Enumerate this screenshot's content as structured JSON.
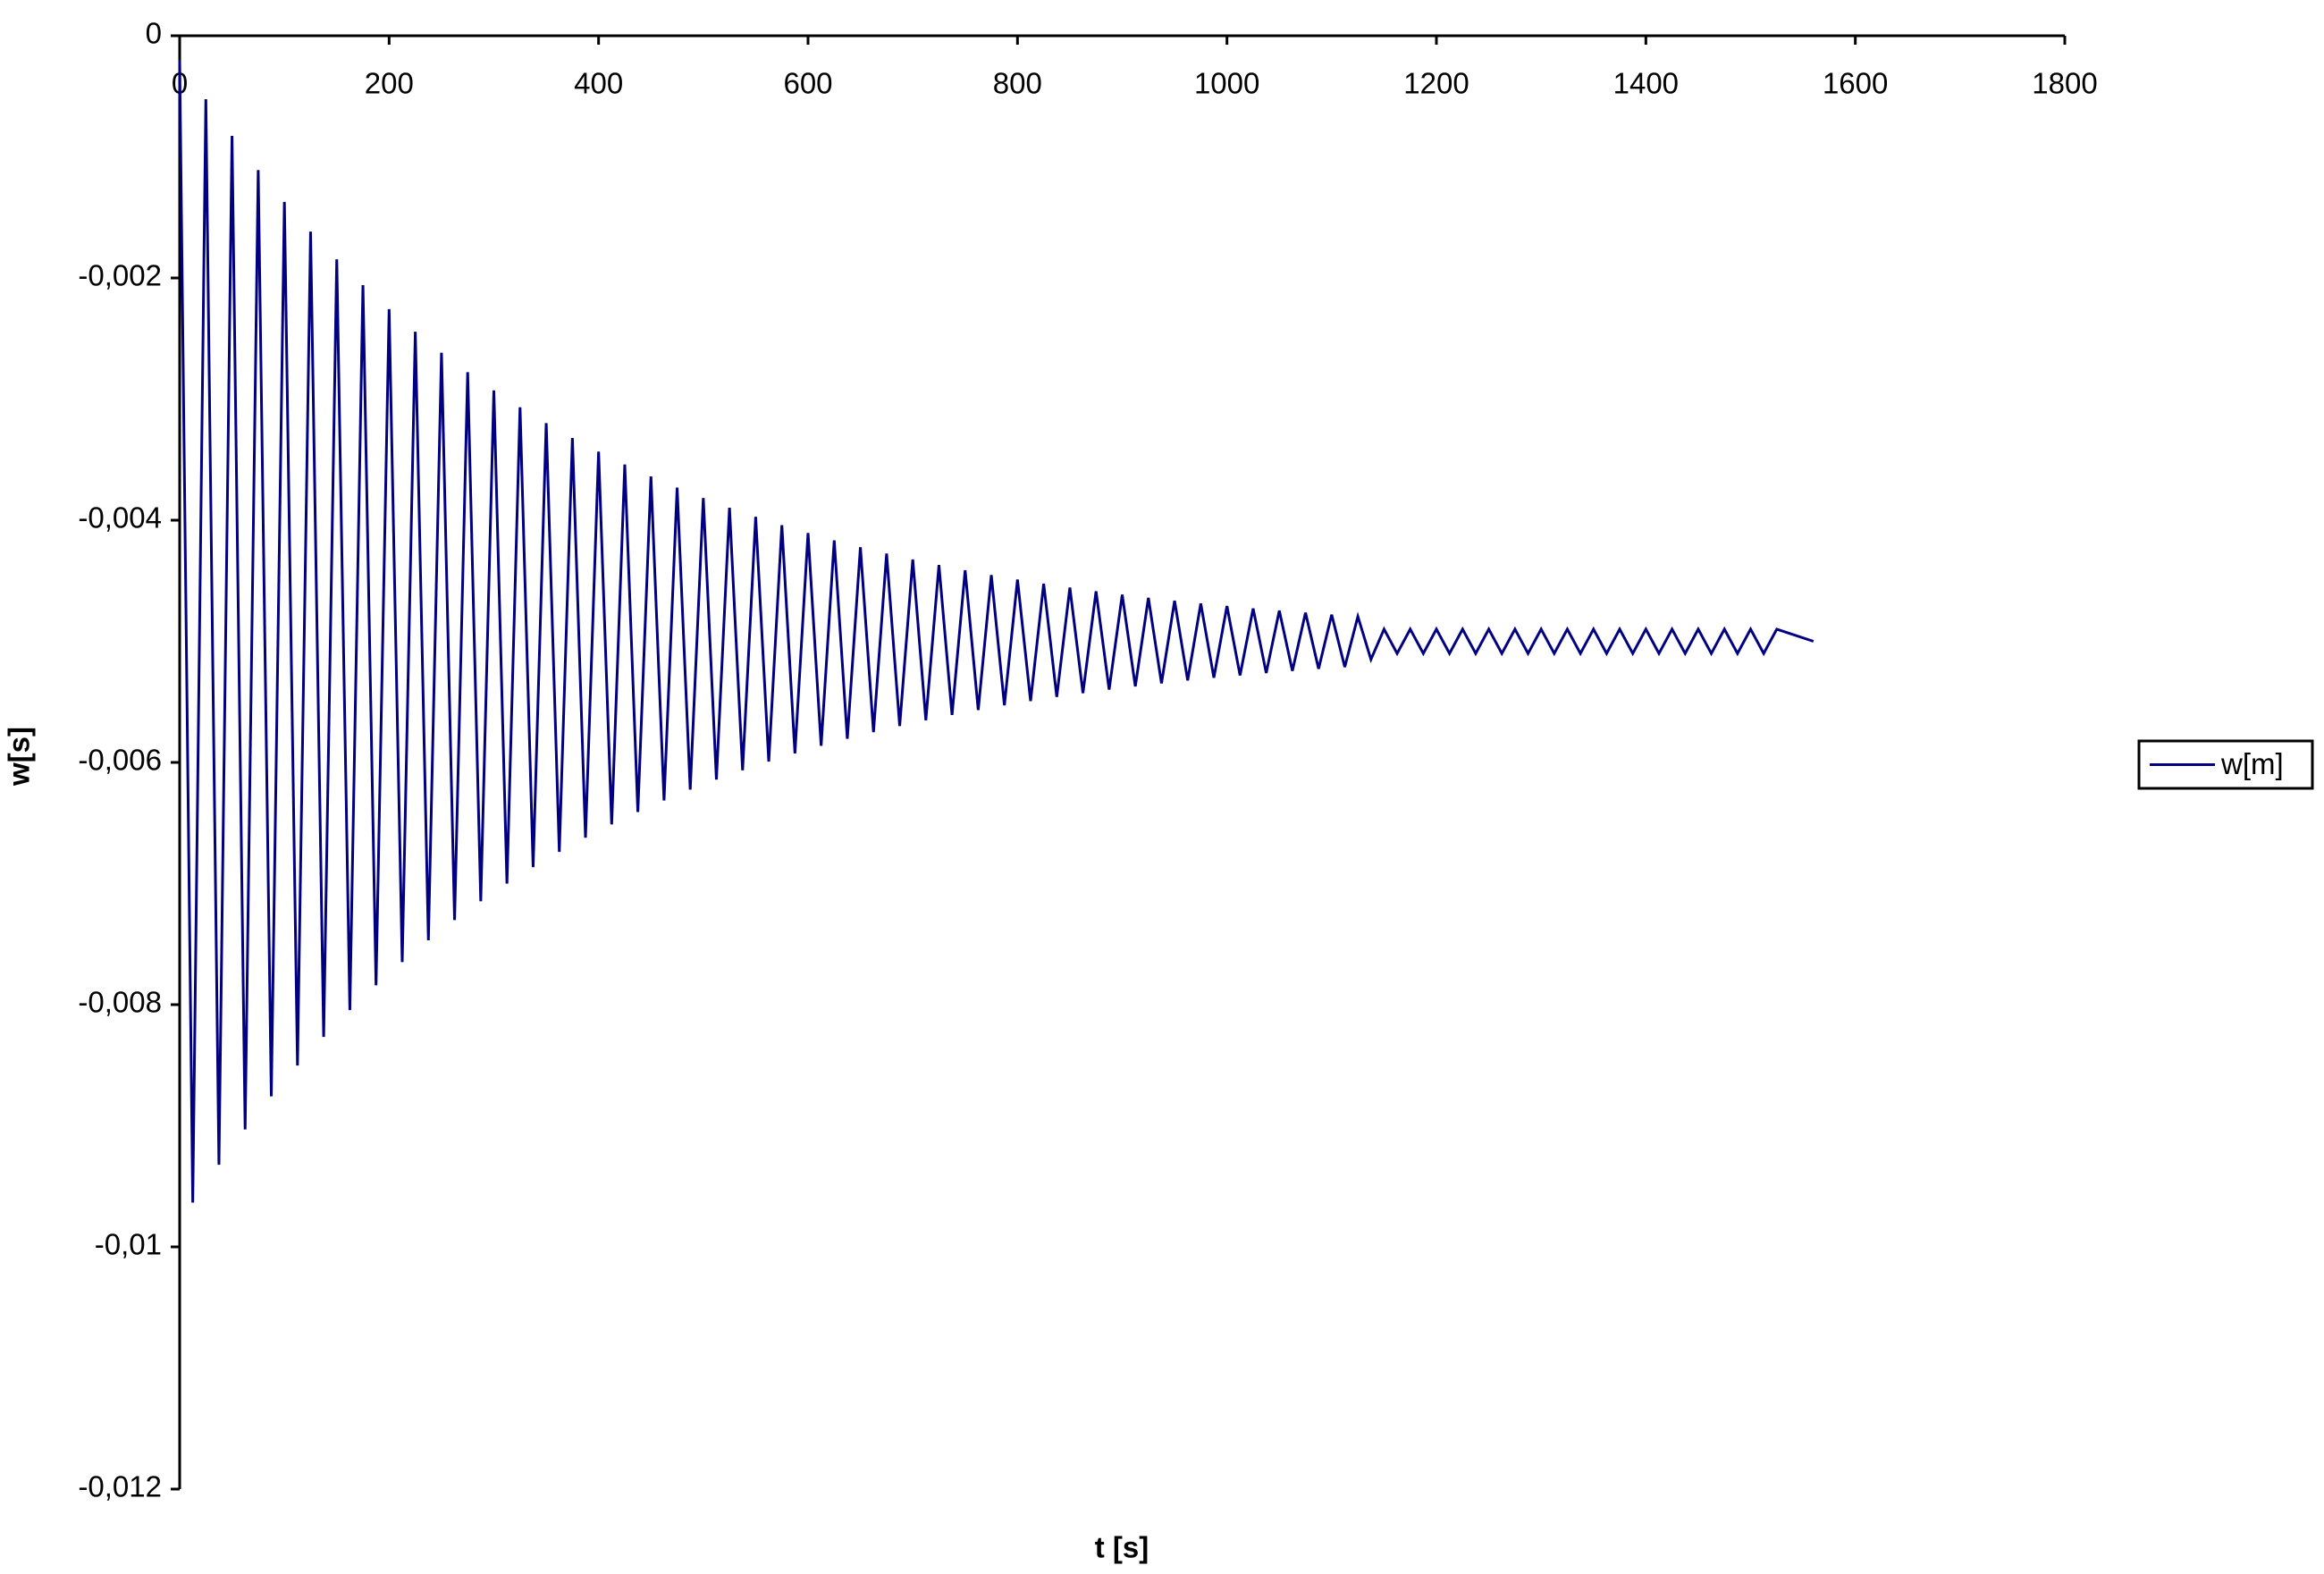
{
  "chart_data": {
    "type": "line",
    "xlabel": "t [s]",
    "ylabel": "w[s]",
    "x": [
      0,
      12.5,
      25,
      37.5,
      50,
      62.5,
      75,
      87.5,
      100,
      112.5,
      125,
      137.5,
      150,
      162.5,
      175,
      187.5,
      200,
      212.5,
      225,
      237.5,
      250,
      262.5,
      275,
      287.5,
      300,
      312.5,
      325,
      337.5,
      350,
      362.5,
      375,
      387.5,
      400,
      412.5,
      425,
      437.5,
      450,
      462.5,
      475,
      487.5,
      500,
      512.5,
      525,
      537.5,
      550,
      562.5,
      575,
      587.5,
      600,
      612.5,
      625,
      637.5,
      650,
      662.5,
      675,
      687.5,
      700,
      712.5,
      725,
      737.5,
      750,
      762.5,
      775,
      787.5,
      800,
      812.5,
      825,
      837.5,
      850,
      862.5,
      875,
      887.5,
      900,
      912.5,
      925,
      937.5,
      950,
      962.5,
      975,
      987.5,
      1000,
      1012.5,
      1025,
      1037.5,
      1050,
      1062.5,
      1075,
      1087.5,
      1100,
      1112.5,
      1125,
      1137.5,
      1150,
      1162.5,
      1175,
      1187.5,
      1200,
      1212.5,
      1225,
      1237.5,
      1250,
      1262.5,
      1275,
      1287.5,
      1300,
      1312.5,
      1325,
      1337.5,
      1350,
      1362.5,
      1375,
      1387.5,
      1400,
      1412.5,
      1425,
      1437.5,
      1450,
      1462.5,
      1475,
      1487.5,
      1500,
      1512.5,
      1525,
      1560
    ],
    "series": [
      {
        "name": "w[m]",
        "color": "#000080",
        "values": [
          -0.0002,
          -0.009635,
          -0.000524,
          -0.009322,
          -0.000827,
          -0.00903,
          -0.001109,
          -0.008757,
          -0.001372,
          -0.008503,
          -0.001617,
          -0.008266,
          -0.001846,
          -0.008045,
          -0.002059,
          -0.00784,
          -0.002258,
          -0.007648,
          -0.002444,
          -0.007468,
          -0.002617,
          -0.007301,
          -0.002778,
          -0.007146,
          -0.002928,
          -0.007001,
          -0.003068,
          -0.006865,
          -0.003199,
          -0.006739,
          -0.003321,
          -0.006621,
          -0.003434,
          -0.006512,
          -0.00354,
          -0.006409,
          -0.003639,
          -0.006314,
          -0.003731,
          -0.006225,
          -0.003817,
          -0.006142,
          -0.003897,
          -0.006065,
          -0.003972,
          -0.005993,
          -0.004041,
          -0.005926,
          -0.004106,
          -0.005863,
          -0.004167,
          -0.005805,
          -0.004223,
          -0.00575,
          -0.004276,
          -0.005699,
          -0.004325,
          -0.005652,
          -0.00437,
          -0.005608,
          -0.004413,
          -0.005567,
          -0.004453,
          -0.005528,
          -0.00449,
          -0.005493,
          -0.004524,
          -0.005459,
          -0.004557,
          -0.005428,
          -0.004587,
          -0.005399,
          -0.004615,
          -0.005372,
          -0.004641,
          -0.005347,
          -0.004665,
          -0.005323,
          -0.004688,
          -0.005301,
          -0.004709,
          -0.005281,
          -0.004729,
          -0.005262,
          -0.004747,
          -0.005244,
          -0.004764,
          -0.005227,
          -0.00478,
          -0.005212,
          -0.004795,
          -0.00515,
          -0.0049,
          -0.0051,
          -0.0049,
          -0.0051,
          -0.0049,
          -0.0051,
          -0.0049,
          -0.0051,
          -0.0049,
          -0.0051,
          -0.0049,
          -0.0051,
          -0.0049,
          -0.0051,
          -0.0049,
          -0.0051,
          -0.0049,
          -0.0051,
          -0.0049,
          -0.0051,
          -0.0049,
          -0.0051,
          -0.0049,
          -0.0051,
          -0.0049,
          -0.0051,
          -0.0049,
          -0.0051,
          -0.0049,
          -0.0051,
          -0.0049,
          -0.005
        ]
      }
    ],
    "xlim": [
      0,
      1800
    ],
    "xticks": [
      0,
      200,
      400,
      600,
      800,
      1000,
      1200,
      1400,
      1600,
      1800
    ],
    "ylim": [
      -0.012,
      0
    ],
    "yticks": [
      0,
      {
        "value": -0.002,
        "label": "-0,002"
      },
      {
        "value": -0.004,
        "label": "-0,004"
      },
      {
        "value": -0.006,
        "label": "-0,006"
      },
      {
        "value": -0.008,
        "label": "-0,008"
      },
      {
        "value": -0.01,
        "label": "-0,01"
      },
      {
        "value": -0.012,
        "label": "-0,012"
      }
    ],
    "grid": false,
    "legend": "right"
  }
}
